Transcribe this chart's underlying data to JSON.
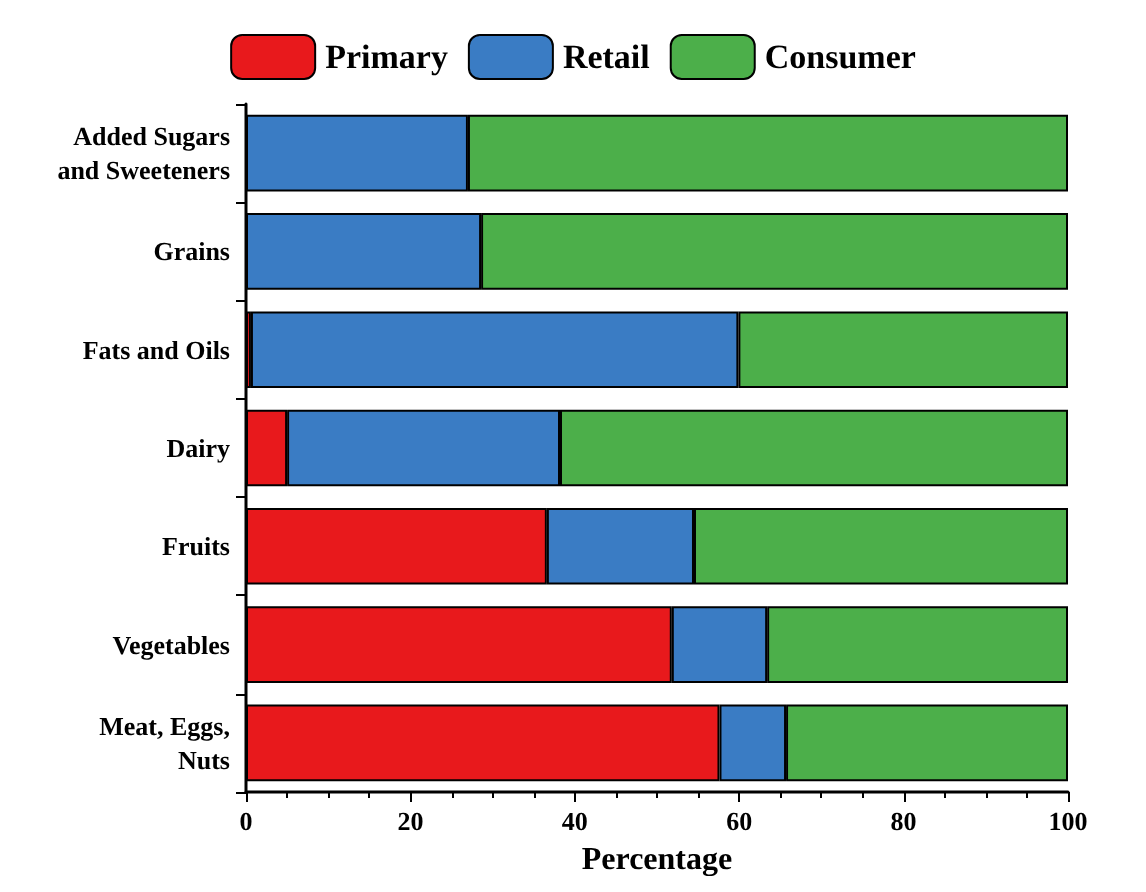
{
  "chart_data": {
    "type": "bar",
    "orientation": "horizontal",
    "stacked": true,
    "xlabel": "Percentage",
    "categories": [
      "Added Sugars\nand Sweeteners",
      "Grains",
      "Fats and Oils",
      "Dairy",
      "Fruits",
      "Vegetables",
      "Meat, Eggs,\nNuts"
    ],
    "series": [
      {
        "name": "Primary",
        "color": "#e8191c",
        "values": [
          0,
          0,
          0.6,
          5,
          36.6,
          51.8,
          57.6
        ]
      },
      {
        "name": "Retail",
        "color": "#3a7cc4",
        "values": [
          27,
          28.6,
          59.3,
          33.2,
          17.9,
          11.6,
          8.1
        ]
      },
      {
        "name": "Consumer",
        "color": "#4caf4a",
        "values": [
          73,
          71.4,
          40.1,
          61.8,
          45.5,
          36.6,
          34.3
        ]
      }
    ],
    "xlim": [
      0,
      100
    ],
    "xticks": [
      0,
      20,
      40,
      60,
      80,
      100
    ],
    "grid": false,
    "legend": "top"
  }
}
